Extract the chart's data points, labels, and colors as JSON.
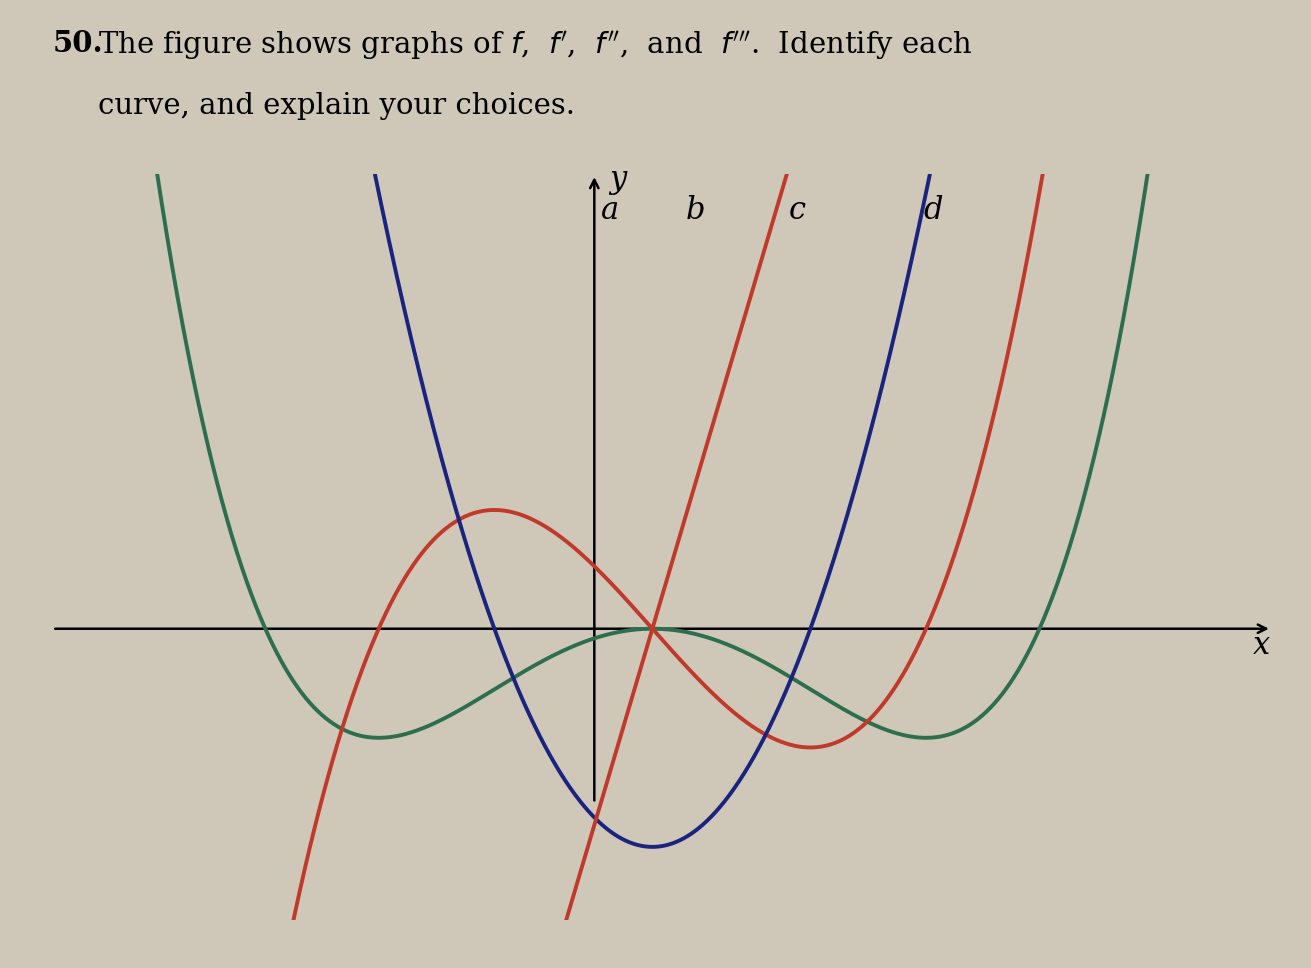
{
  "background_color": "#cfc8b8",
  "curve_a_color": "#c0392b",
  "curve_b_color": "#1a237e",
  "curve_c_color": "#2d6e4e",
  "curve_d_color": "#c0392b",
  "xlim": [
    -2.8,
    3.5
  ],
  "ylim": [
    -3.2,
    5.0
  ],
  "axis_label_x": "x",
  "axis_label_y": "y",
  "title_num": "50.",
  "title_line1": "The figure shows graphs of ",
  "title_line2": "curve, and explain your choices."
}
